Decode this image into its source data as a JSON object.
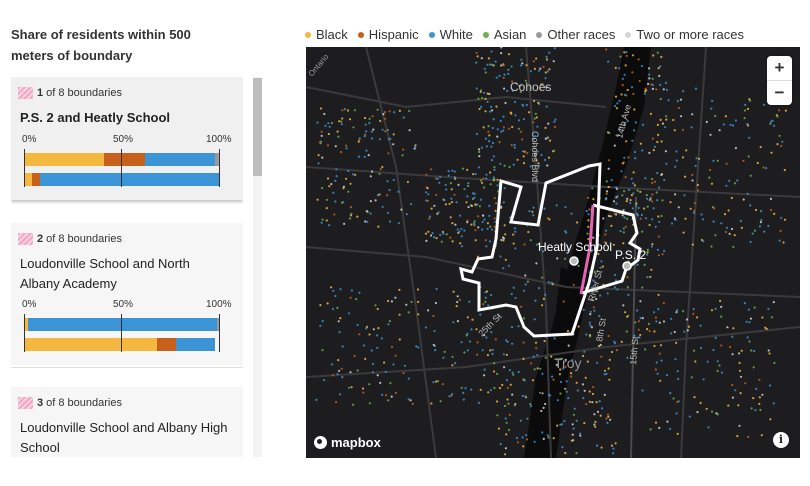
{
  "title": "Share of residents within 500 meters of boundary",
  "legend": [
    {
      "label": "Black",
      "color": "#f4b73f"
    },
    {
      "label": "Hispanic",
      "color": "#c7601a"
    },
    {
      "label": "White",
      "color": "#3a94d6"
    },
    {
      "label": "Asian",
      "color": "#6ab04c"
    },
    {
      "label": "Other races",
      "color": "#9a9a9a"
    },
    {
      "label": "Two or more races",
      "color": "#d6d6d6"
    }
  ],
  "axis": {
    "p0": "0%",
    "p50": "50%",
    "p100": "100%"
  },
  "cards": [
    {
      "index": "1",
      "of_text": "of 8 boundaries",
      "name": "P.S. 2 and Heatly School",
      "bars": [
        {
          "Black": 0.41,
          "Hispanic": 0.21,
          "White": 0.36,
          "Other": 0.02
        },
        {
          "Black": 0.04,
          "Hispanic": 0.04,
          "White": 0.92
        }
      ]
    },
    {
      "index": "2",
      "of_text": "of 8 boundaries",
      "name": "Loudonville School and North Albany Academy",
      "bars": [
        {
          "Black": 0.02,
          "White": 0.97,
          "Other": 0.01
        },
        {
          "Black": 0.68,
          "Hispanic": 0.1,
          "White": 0.2
        }
      ]
    },
    {
      "index": "3",
      "of_text": "of 8 boundaries",
      "name": "Loudonville School and Albany High School"
    }
  ],
  "map": {
    "labels": {
      "cohoes": "Cohoes",
      "cohoes_blvd": "Cohoes Blvd",
      "heatly": "Heatly School",
      "ps2": "P.S. 2",
      "troy": "Troy",
      "river_st": "River St",
      "eighth_st": "8th St",
      "fifteenth_st": "15th St",
      "twentyfifth_st": "25th St",
      "fourteenth_ave": "14th Ave",
      "ontario": "Ontario"
    },
    "zoom_in": "+",
    "zoom_out": "−",
    "attribution": "mapbox",
    "info": "i"
  }
}
